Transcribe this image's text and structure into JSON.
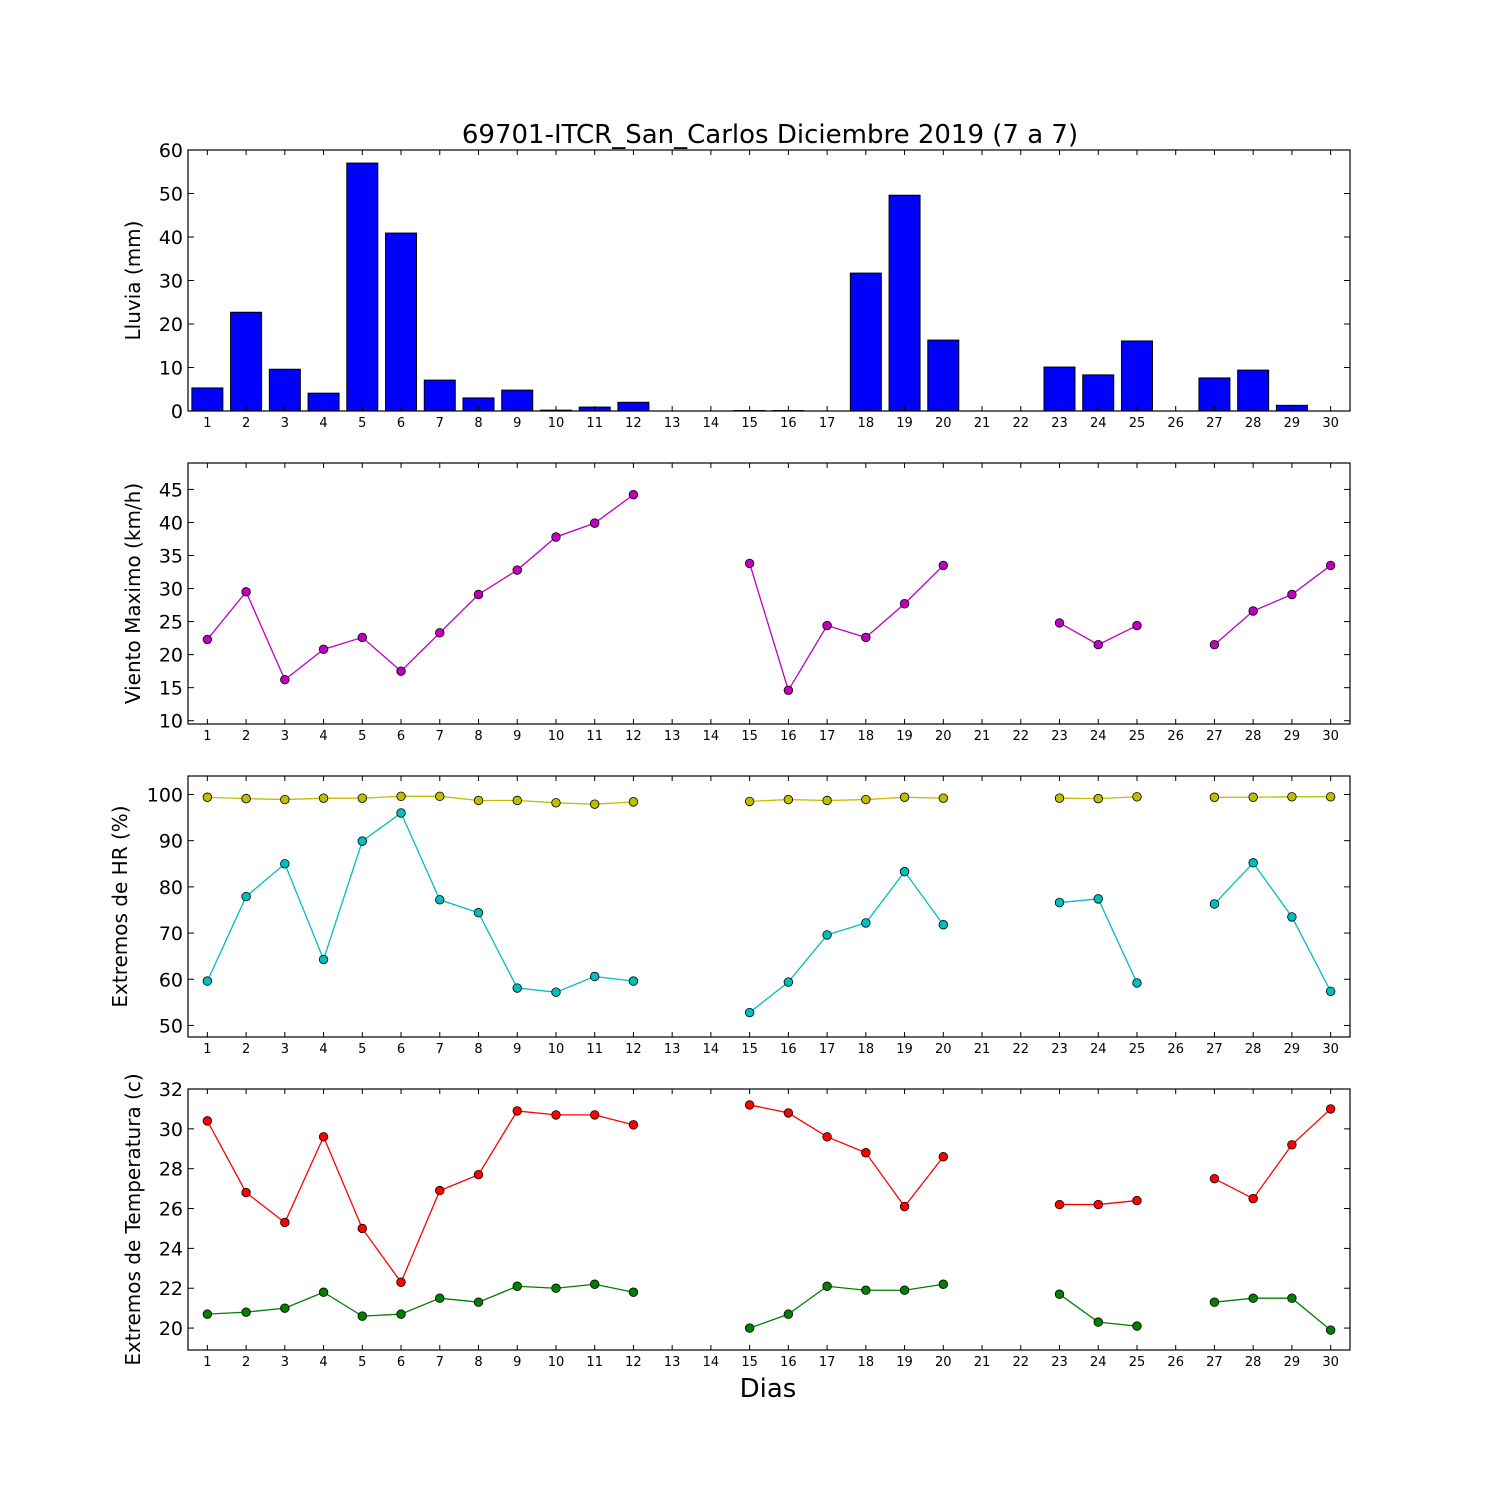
{
  "chart_data": {
    "title": "69701-ITCR_San_Carlos Diciembre 2019  (7 a 7)",
    "xlabel": "Dias",
    "x_ticks": [
      1,
      2,
      3,
      4,
      5,
      6,
      7,
      8,
      9,
      10,
      11,
      12,
      13,
      14,
      15,
      16,
      17,
      18,
      19,
      20,
      21,
      22,
      23,
      24,
      25,
      26,
      27,
      28,
      29,
      30
    ],
    "xlim": [
      0.5,
      30.5
    ],
    "grid": false,
    "panels": [
      {
        "type": "bar",
        "ylabel": "Lluvia (mm)",
        "ylim": [
          0,
          60
        ],
        "yticks": [
          0,
          10,
          20,
          30,
          40,
          50,
          60
        ],
        "series": [
          {
            "color": "#0000ff",
            "values": [
              5.3,
              22.7,
              9.6,
              4.1,
              57.0,
              40.9,
              7.1,
              3.0,
              4.8,
              0.2,
              0.9,
              2.0,
              0,
              0,
              0.1,
              0.1,
              0,
              31.7,
              49.6,
              16.3,
              0,
              0,
              10.1,
              8.3,
              16.1,
              0,
              7.6,
              9.4,
              1.3,
              0
            ]
          }
        ]
      },
      {
        "type": "line",
        "ylabel": "Viento Maximo (km/h)",
        "ylim": [
          9.5,
          49
        ],
        "yticks": [
          10,
          15,
          20,
          25,
          30,
          35,
          40,
          45
        ],
        "series": [
          {
            "color": "#bf00bf",
            "values": [
              22.3,
              29.5,
              16.2,
              20.8,
              22.6,
              17.5,
              23.3,
              29.1,
              32.8,
              37.8,
              39.9,
              44.2,
              null,
              null,
              33.8,
              14.6,
              24.4,
              22.6,
              27.7,
              33.5,
              null,
              null,
              24.8,
              21.5,
              24.4,
              null,
              21.5,
              26.6,
              29.1,
              33.5
            ]
          }
        ]
      },
      {
        "type": "line",
        "ylabel": "Extremos de HR (%)",
        "ylim": [
          47.5,
          104
        ],
        "yticks": [
          50,
          60,
          70,
          80,
          90,
          100
        ],
        "series": [
          {
            "color": "#bfbf00",
            "values": [
              99.4,
              99.1,
              98.9,
              99.2,
              99.2,
              99.6,
              99.6,
              98.7,
              98.7,
              98.2,
              97.9,
              98.4,
              null,
              null,
              98.5,
              98.9,
              98.7,
              98.9,
              99.4,
              99.2,
              null,
              null,
              99.2,
              99.1,
              99.5,
              null,
              99.4,
              99.4,
              99.5,
              99.5
            ]
          },
          {
            "color": "#00bfbf",
            "values": [
              59.6,
              77.9,
              85.0,
              64.3,
              89.9,
              96.0,
              77.2,
              74.4,
              58.1,
              57.2,
              60.6,
              59.6,
              null,
              null,
              52.8,
              59.4,
              69.6,
              72.2,
              83.3,
              71.8,
              null,
              null,
              76.6,
              77.4,
              59.2,
              null,
              76.3,
              85.2,
              73.5,
              57.4
            ]
          }
        ]
      },
      {
        "type": "line",
        "ylabel": "Extremos de Temperatura (c)",
        "ylim": [
          18.9,
          32
        ],
        "yticks": [
          20,
          22,
          24,
          26,
          28,
          30,
          32
        ],
        "series": [
          {
            "color": "#ff0000",
            "values": [
              30.4,
              26.8,
              25.3,
              29.6,
              25.0,
              22.3,
              26.9,
              27.7,
              30.9,
              30.7,
              30.7,
              30.2,
              null,
              null,
              31.2,
              30.8,
              29.6,
              28.8,
              26.1,
              28.6,
              null,
              null,
              26.2,
              26.2,
              26.4,
              null,
              27.5,
              26.5,
              29.2,
              31.0
            ]
          },
          {
            "color": "#008000",
            "values": [
              20.7,
              20.8,
              21.0,
              21.8,
              20.6,
              20.7,
              21.5,
              21.3,
              22.1,
              22.0,
              22.2,
              21.8,
              null,
              null,
              20.0,
              20.7,
              22.1,
              21.9,
              21.9,
              22.2,
              null,
              null,
              21.7,
              20.3,
              20.1,
              null,
              21.3,
              21.5,
              21.5,
              19.9
            ]
          }
        ]
      }
    ]
  }
}
